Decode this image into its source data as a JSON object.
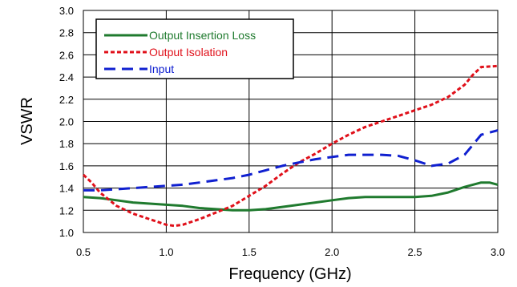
{
  "chart_data": {
    "type": "line",
    "title": "",
    "xlabel": "Frequency (GHz)",
    "ylabel": "VSWR",
    "xlim": [
      0.5,
      3.0
    ],
    "ylim": [
      1.0,
      3.0
    ],
    "xticks": [
      "0.5",
      "1.0",
      "1.5",
      "2.0",
      "2.5",
      "3.0"
    ],
    "yticks": [
      "1.0",
      "1.2",
      "1.4",
      "1.6",
      "1.8",
      "2.0",
      "2.2",
      "2.4",
      "2.6",
      "2.8",
      "3.0"
    ],
    "grid": true,
    "legend_position": "top-left",
    "series": [
      {
        "name": "Output Insertion Loss",
        "color": "#1f7a2e",
        "style": "solid",
        "x": [
          0.5,
          0.6,
          0.7,
          0.8,
          0.9,
          1.0,
          1.1,
          1.2,
          1.3,
          1.4,
          1.5,
          1.6,
          1.7,
          1.8,
          1.9,
          2.0,
          2.1,
          2.2,
          2.3,
          2.4,
          2.5,
          2.6,
          2.7,
          2.8,
          2.9,
          2.95,
          3.0
        ],
        "y": [
          1.32,
          1.31,
          1.29,
          1.27,
          1.26,
          1.25,
          1.24,
          1.22,
          1.21,
          1.2,
          1.2,
          1.21,
          1.23,
          1.25,
          1.27,
          1.29,
          1.31,
          1.32,
          1.32,
          1.32,
          1.32,
          1.33,
          1.36,
          1.41,
          1.45,
          1.45,
          1.43
        ]
      },
      {
        "name": "Output Isolation",
        "color": "#e0101a",
        "style": "dotted",
        "x": [
          0.5,
          0.55,
          0.6,
          0.7,
          0.8,
          0.9,
          1.0,
          1.05,
          1.1,
          1.2,
          1.3,
          1.4,
          1.5,
          1.6,
          1.7,
          1.8,
          1.9,
          2.0,
          2.1,
          2.2,
          2.3,
          2.4,
          2.5,
          2.6,
          2.7,
          2.8,
          2.85,
          2.9,
          3.0
        ],
        "y": [
          1.52,
          1.45,
          1.36,
          1.24,
          1.17,
          1.12,
          1.07,
          1.06,
          1.07,
          1.12,
          1.18,
          1.24,
          1.33,
          1.42,
          1.53,
          1.63,
          1.71,
          1.8,
          1.88,
          1.95,
          2.0,
          2.05,
          2.1,
          2.15,
          2.22,
          2.33,
          2.42,
          2.49,
          2.5
        ]
      },
      {
        "name": "Input",
        "color": "#1020d0",
        "style": "dashed",
        "x": [
          0.5,
          0.6,
          0.7,
          0.8,
          0.9,
          1.0,
          1.1,
          1.2,
          1.3,
          1.4,
          1.5,
          1.6,
          1.7,
          1.8,
          1.9,
          2.0,
          2.1,
          2.2,
          2.3,
          2.4,
          2.5,
          2.6,
          2.7,
          2.8,
          2.9,
          3.0
        ],
        "y": [
          1.38,
          1.38,
          1.39,
          1.4,
          1.41,
          1.42,
          1.43,
          1.45,
          1.47,
          1.49,
          1.52,
          1.56,
          1.6,
          1.63,
          1.66,
          1.68,
          1.7,
          1.7,
          1.7,
          1.69,
          1.65,
          1.6,
          1.62,
          1.7,
          1.88,
          1.92
        ]
      }
    ]
  }
}
